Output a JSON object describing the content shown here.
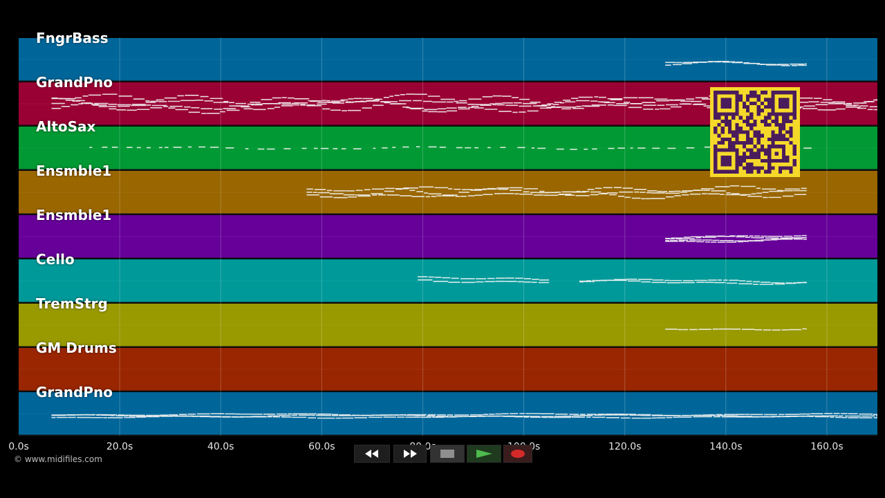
{
  "chart_data": {
    "type": "piano-roll",
    "x_unit": "s",
    "xlim": [
      0,
      170
    ],
    "x_ticks": [
      "0.0s",
      "20.0s",
      "40.0s",
      "60.0s",
      "80.0s",
      "100.0s",
      "120.0s",
      "140.0s",
      "160.0s"
    ],
    "tracks": [
      {
        "name": "FngrBass",
        "color": "#006699",
        "segments": [
          {
            "start": 128,
            "end": 156,
            "mid": 0.6,
            "amp": 0.08,
            "lines": 2,
            "dense": true
          }
        ]
      },
      {
        "name": "GrandPno",
        "color": "#990033",
        "segments": [
          {
            "start": 6.5,
            "end": 170,
            "mid": 0.5,
            "amp": 0.22,
            "lines": 4,
            "dense": true
          }
        ]
      },
      {
        "name": "AltoSax",
        "color": "#009933",
        "segments": [
          {
            "start": 14,
            "end": 157,
            "mid": 0.5,
            "amp": 0.04,
            "lines": 1,
            "dense": false
          }
        ]
      },
      {
        "name": "Ensmble1",
        "color": "#996600",
        "segments": [
          {
            "start": 57,
            "end": 156,
            "mid": 0.5,
            "amp": 0.15,
            "lines": 3,
            "dense": true
          }
        ]
      },
      {
        "name": "Ensmble1",
        "color": "#660099",
        "segments": [
          {
            "start": 128,
            "end": 156,
            "mid": 0.55,
            "amp": 0.06,
            "lines": 4,
            "dense": true
          }
        ]
      },
      {
        "name": "Cello",
        "color": "#009999",
        "segments": [
          {
            "start": 79,
            "end": 105,
            "mid": 0.48,
            "amp": 0.08,
            "lines": 2,
            "dense": true
          },
          {
            "start": 111,
            "end": 156,
            "mid": 0.52,
            "amp": 0.06,
            "lines": 2,
            "dense": true
          }
        ]
      },
      {
        "name": "TremStrg",
        "color": "#999900",
        "segments": [
          {
            "start": 128,
            "end": 156,
            "mid": 0.58,
            "amp": 0.05,
            "lines": 1,
            "dense": true
          }
        ]
      },
      {
        "name": "GM Drums",
        "color": "#992600",
        "segments": []
      },
      {
        "name": "GrandPno",
        "color": "#006699",
        "segments": [
          {
            "start": 6.5,
            "end": 170,
            "mid": 0.55,
            "amp": 0.03,
            "lines": 3,
            "dense": true
          }
        ]
      }
    ]
  },
  "copyright": "© www.midifiles.com",
  "transport": {
    "buttons": [
      {
        "name": "rewind-button",
        "icon": "rewind-icon"
      },
      {
        "name": "fast-forward-button",
        "icon": "fast-forward-icon"
      },
      {
        "name": "stop-button",
        "icon": "stop-icon"
      },
      {
        "name": "play-button",
        "icon": "play-icon"
      },
      {
        "name": "record-button",
        "icon": "record-icon"
      }
    ]
  },
  "qr_code": {
    "icon": "qr-code-icon",
    "color": "#f5d92a"
  }
}
